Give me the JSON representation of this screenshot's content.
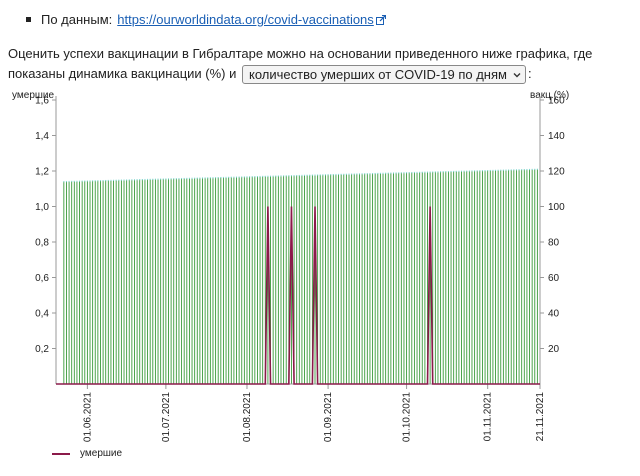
{
  "source": {
    "label": "По данным:",
    "link_text": "https://ourworldindata.org/covid-vaccinations"
  },
  "paragraph": {
    "text_before": "Оценить успехи вакцинации в Гибралтаре можно на основании приведенного ниже графика, где показаны динамика вакцинации (%) и",
    "select_value": "количество умерших от COVID-19 по дням",
    "text_after": ":"
  },
  "colors": {
    "deaths": "#8b1a4a",
    "vaccination": "#3a9a3a",
    "vaccination_top": "#7fd6d0",
    "link": "#1a5fb4"
  },
  "icons": [
    "external-link-icon",
    "chevron-down-icon"
  ],
  "chart_data": {
    "type": "bar",
    "left_axis_label": "умершие",
    "right_axis_label": "вакц.(%)",
    "left_ylim": [
      0,
      1.6
    ],
    "right_ylim": [
      0,
      160
    ],
    "left_ticks": [
      "0,2",
      "0,4",
      "0,6",
      "0,8",
      "1,0",
      "1,2",
      "1,4",
      "1,6"
    ],
    "right_ticks": [
      "20",
      "40",
      "60",
      "80",
      "100",
      "120",
      "140",
      "160"
    ],
    "x_ticks": [
      "01.06.2021",
      "01.07.2021",
      "01.08.2021",
      "01.09.2021",
      "01.10.2021",
      "01.11.2021",
      "21.11.2021"
    ],
    "x_range": [
      "2021-05-20",
      "2021-11-21"
    ],
    "vaccination_start_pct": 114,
    "vaccination_end_pct": 121,
    "death_spike_dates": [
      "2021-08-09",
      "2021-08-18",
      "2021-08-27",
      "2021-10-10"
    ],
    "death_spike_value": 1,
    "legend": [
      "умершие"
    ],
    "grid": false
  }
}
